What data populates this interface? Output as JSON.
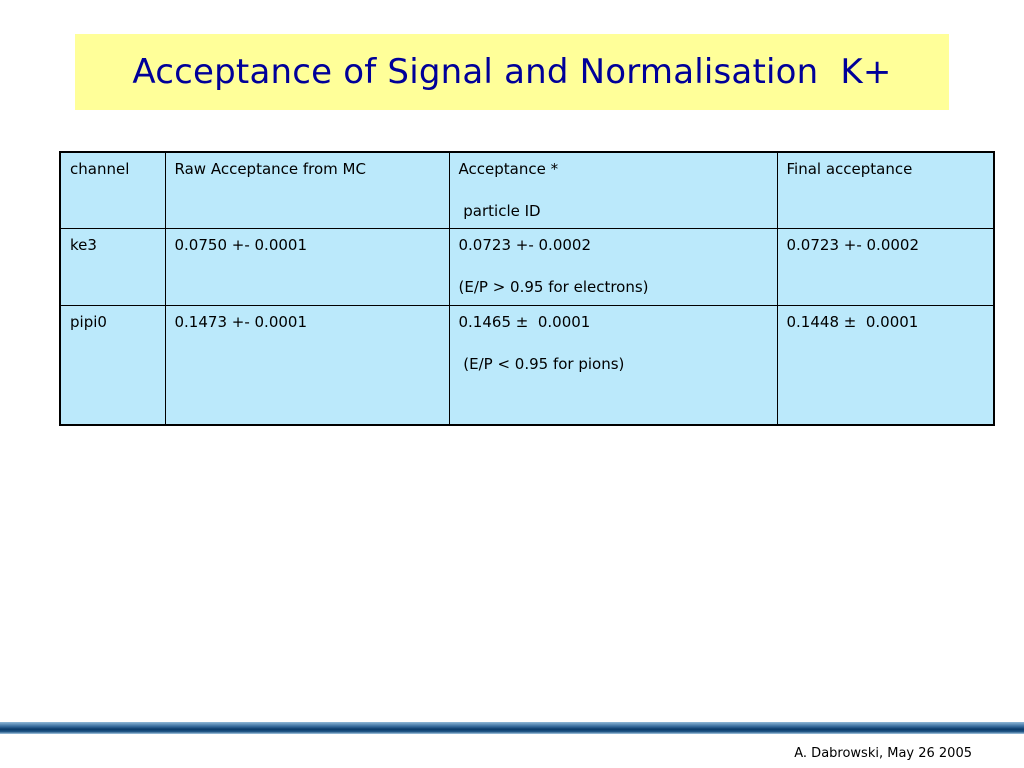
{
  "slide": {
    "title": "Acceptance of Signal and Normalisation  K+",
    "footer": "A. Dabrowski, May 26 2005"
  },
  "table": {
    "header": {
      "c1": "channel",
      "c2": "Raw Acceptance from MC",
      "c3_line1": "Acceptance *",
      "c3_line2": " particle ID",
      "c4": "Final acceptance"
    },
    "rows": [
      {
        "channel": "ke3",
        "raw": "0.0750 +- 0.0001",
        "acc_line1": "0.0723 +- 0.0002",
        "acc_line2": "(E/P > 0.95 for electrons)",
        "final": "0.0723 +- 0.0002"
      },
      {
        "channel": "pipi0",
        "raw": "0.1473 +- 0.0001",
        "acc_line1": "0.1465 ±  0.0001",
        "acc_line2": " (E/P < 0.95 for pions)",
        "final": "0.1448 ±  0.0001"
      }
    ]
  },
  "colors": {
    "title_background": "#ffff99",
    "title_text": "#000099",
    "table_background": "#bbe9fb",
    "footer_bar": "#0a3a6a"
  }
}
